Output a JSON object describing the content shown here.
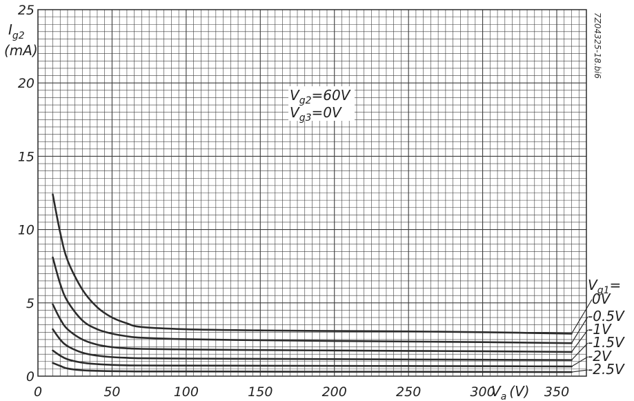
{
  "chart_data": {
    "type": "line",
    "xlabel": "V_a (V)",
    "xlabel_main": "V",
    "xlabel_sub": "a",
    "xlabel_unit": "(V)",
    "ylabel_main": "I",
    "ylabel_sub": "g2",
    "ylabel_unit": "(mA)",
    "xlim": [
      0,
      370
    ],
    "ylim": [
      0,
      25
    ],
    "x_ticks": [
      0,
      50,
      100,
      150,
      200,
      250,
      300,
      350
    ],
    "y_ticks": [
      0,
      5,
      10,
      15,
      20,
      25
    ],
    "x_tick_labels": [
      "0",
      "50",
      "100",
      "150",
      "200",
      "250",
      "300",
      "350"
    ],
    "y_tick_labels": [
      "0",
      "5",
      "10",
      "15",
      "20",
      "25"
    ],
    "grid": true,
    "annotation_line1": "V_g2 = 60V",
    "annotation_line2": "V_g3 = 0V",
    "legend_title": "V_g1 =",
    "reference_code": "7Z04325-18.bi6",
    "series": [
      {
        "name": "0V",
        "x": [
          10,
          15,
          20,
          30,
          40,
          50,
          60,
          70,
          100,
          150,
          200,
          250,
          300,
          360
        ],
        "values": [
          12.4,
          9.8,
          7.9,
          5.9,
          4.7,
          4.0,
          3.6,
          3.35,
          3.2,
          3.12,
          3.08,
          3.05,
          3.0,
          2.9
        ]
      },
      {
        "name": "-0.5V",
        "x": [
          10,
          15,
          20,
          30,
          40,
          50,
          60,
          70,
          100,
          150,
          200,
          250,
          300,
          360
        ],
        "values": [
          8.1,
          6.3,
          5.1,
          3.8,
          3.2,
          2.9,
          2.72,
          2.62,
          2.52,
          2.45,
          2.4,
          2.36,
          2.32,
          2.25
        ]
      },
      {
        "name": "-1V",
        "x": [
          10,
          15,
          20,
          30,
          40,
          50,
          60,
          70,
          100,
          150,
          200,
          250,
          300,
          360
        ],
        "values": [
          4.9,
          3.9,
          3.2,
          2.5,
          2.15,
          1.98,
          1.9,
          1.86,
          1.82,
          1.78,
          1.75,
          1.72,
          1.7,
          1.65
        ]
      },
      {
        "name": "-1.5V",
        "x": [
          10,
          15,
          20,
          30,
          40,
          50,
          60,
          70,
          100,
          150,
          200,
          250,
          300,
          360
        ],
        "values": [
          3.2,
          2.5,
          2.05,
          1.6,
          1.4,
          1.3,
          1.25,
          1.22,
          1.2,
          1.18,
          1.16,
          1.14,
          1.12,
          1.1
        ]
      },
      {
        "name": "-2V",
        "x": [
          10,
          15,
          20,
          30,
          40,
          50,
          60,
          70,
          100,
          150,
          200,
          250,
          300,
          360
        ],
        "values": [
          1.75,
          1.4,
          1.15,
          0.92,
          0.82,
          0.77,
          0.74,
          0.73,
          0.72,
          0.71,
          0.7,
          0.69,
          0.68,
          0.66
        ]
      },
      {
        "name": "-2.5V",
        "x": [
          10,
          15,
          20,
          30,
          40,
          50,
          60,
          70,
          100,
          150,
          200,
          250,
          300,
          360
        ],
        "values": [
          0.9,
          0.7,
          0.52,
          0.4,
          0.36,
          0.34,
          0.33,
          0.32,
          0.32,
          0.31,
          0.3,
          0.3,
          0.29,
          0.28
        ]
      }
    ],
    "line_color": "#2b2b2b",
    "grid_color": "#3a3a3a",
    "background": "#ffffff"
  }
}
